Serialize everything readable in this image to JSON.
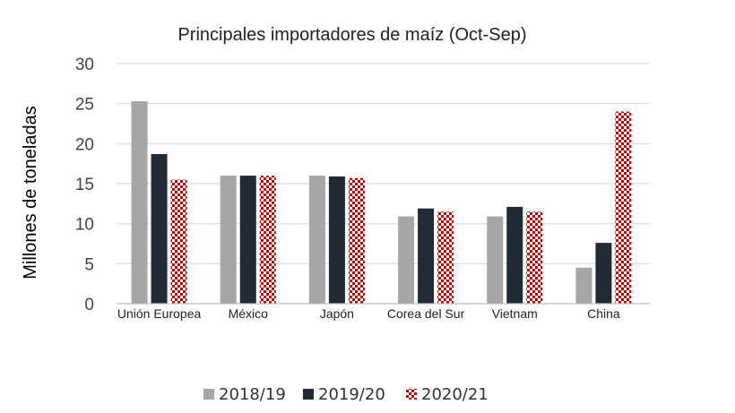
{
  "chart_data": {
    "type": "bar",
    "title": "Principales importadores de maíz (Oct-Sep)",
    "ylabel": "Millones de toneladas",
    "xlabel": "",
    "ylim": [
      0,
      30
    ],
    "yticks": [
      0,
      5,
      10,
      15,
      20,
      25,
      30
    ],
    "grid": true,
    "legend_position": "bottom",
    "categories": [
      "Unión Europea",
      "México",
      "Japón",
      "Corea del Sur",
      "Vietnam",
      "China"
    ],
    "series": [
      {
        "name": "2018/19",
        "color": "#a6a6a6",
        "pattern": "solid",
        "values": [
          25.3,
          16.0,
          16.0,
          10.9,
          10.9,
          4.5
        ]
      },
      {
        "name": "2019/20",
        "color": "#222a35",
        "pattern": "solid",
        "values": [
          18.7,
          16.0,
          15.9,
          11.9,
          12.1,
          7.6
        ]
      },
      {
        "name": "2020/21",
        "color": "#c00000",
        "pattern": "checker",
        "values": [
          15.5,
          16.0,
          15.7,
          11.5,
          11.5,
          24.0
        ]
      }
    ]
  }
}
